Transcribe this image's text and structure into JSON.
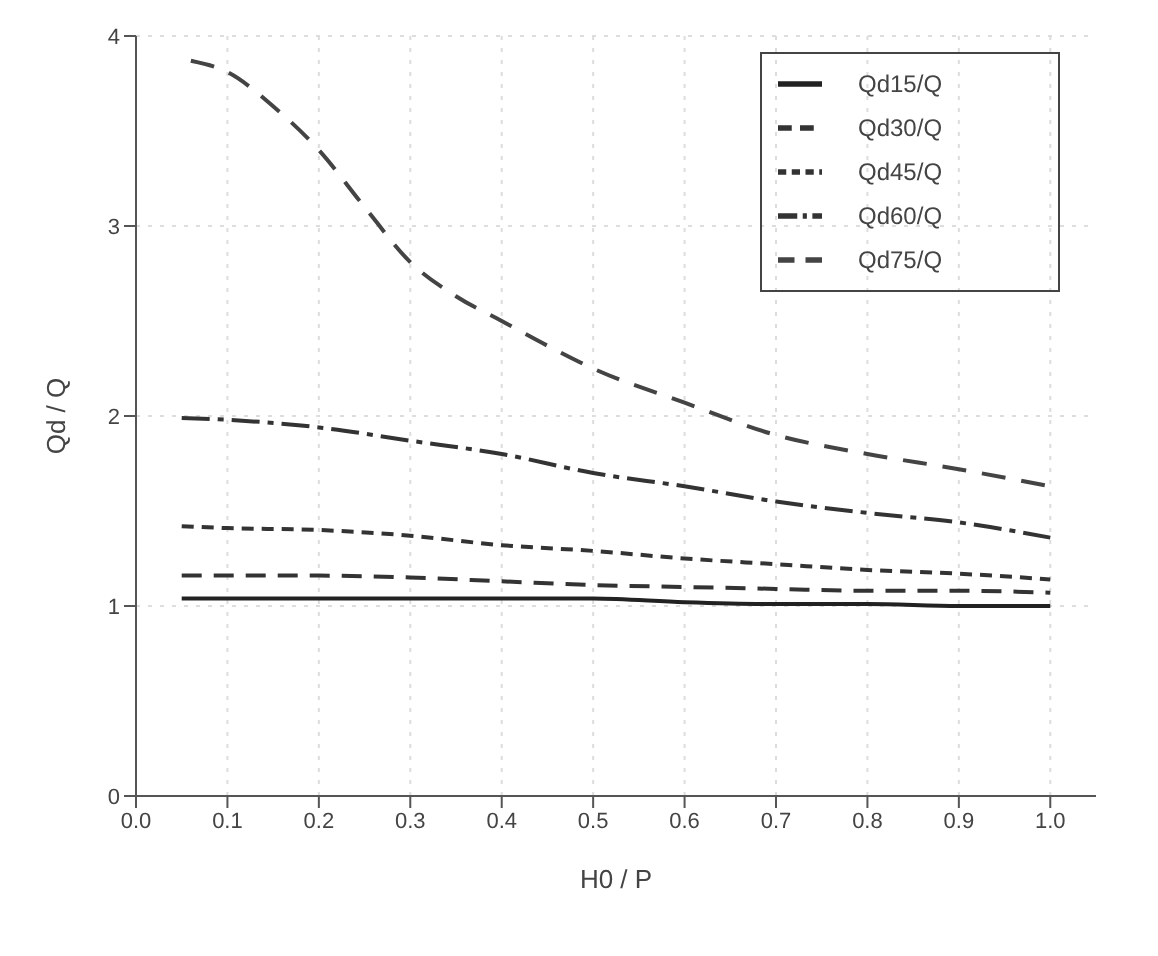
{
  "chart_data": {
    "type": "line",
    "xlabel": "H0 / P",
    "ylabel": "Qd / Q",
    "x": [
      0.05,
      0.1,
      0.2,
      0.3,
      0.4,
      0.5,
      0.6,
      0.7,
      0.8,
      0.9,
      1.0
    ],
    "series": [
      {
        "name": "Qd15/Q",
        "color": "#222222",
        "line_style": "solid",
        "values": [
          1.04,
          1.04,
          1.04,
          1.04,
          1.04,
          1.04,
          1.02,
          1.01,
          1.01,
          1.0,
          1.0
        ]
      },
      {
        "name": "Qd30/Q",
        "color": "#333333",
        "line_style": "dashed",
        "values": [
          1.16,
          1.16,
          1.16,
          1.15,
          1.13,
          1.11,
          1.1,
          1.09,
          1.08,
          1.08,
          1.07
        ]
      },
      {
        "name": "Qd45/Q",
        "color": "#333333",
        "line_style": "dashed",
        "values": [
          1.42,
          1.41,
          1.4,
          1.37,
          1.32,
          1.29,
          1.25,
          1.22,
          1.19,
          1.17,
          1.14
        ]
      },
      {
        "name": "Qd60/Q",
        "color": "#333333",
        "line_style": "dashed",
        "values": [
          1.99,
          1.98,
          1.94,
          1.87,
          1.8,
          1.7,
          1.63,
          1.55,
          1.49,
          1.44,
          1.36
        ]
      },
      {
        "name": "Qd75/Q",
        "color": "#444444",
        "line_style": "dashed",
        "x": [
          0.06,
          0.1,
          0.15,
          0.2,
          0.25,
          0.3,
          0.35,
          0.4,
          0.45,
          0.5,
          0.6,
          0.7,
          0.8,
          0.9,
          1.0
        ],
        "values": [
          3.87,
          3.81,
          3.63,
          3.4,
          3.1,
          2.81,
          2.63,
          2.5,
          2.37,
          2.25,
          2.07,
          1.9,
          1.8,
          1.72,
          1.63
        ]
      }
    ],
    "xlim": [
      0,
      1.05
    ],
    "ylim": [
      0,
      4
    ],
    "xticks": [
      {
        "value": 0,
        "label": "0.0"
      },
      0.1,
      0.2,
      0.3,
      0.4,
      0.5,
      0.6,
      0.7,
      0.8,
      0.9,
      {
        "value": 1,
        "label": "1.0"
      }
    ],
    "yticks": [
      0,
      1,
      2,
      3,
      4
    ],
    "grid": true,
    "legend": "top right",
    "marker": "none"
  }
}
